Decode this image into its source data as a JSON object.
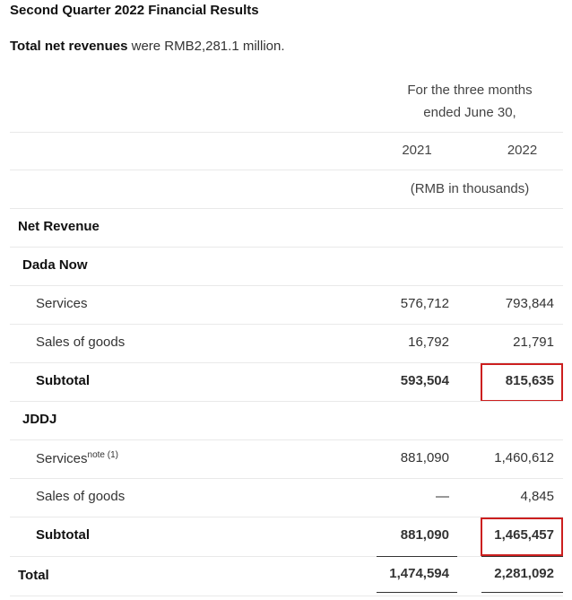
{
  "title": "Second Quarter 2022 Financial Results",
  "intro": {
    "bold": "Total net revenues",
    "rest": " were RMB2,281.1 million."
  },
  "header": {
    "period_line1": "For the three months",
    "period_line2": "ended June 30,",
    "year1": "2021",
    "year2": "2022",
    "unit": "(RMB in thousands)"
  },
  "rows": {
    "net_revenue": "Net Revenue",
    "dada_now": "Dada Now",
    "dn_services": {
      "label": "Services",
      "v2021": "576,712",
      "v2022": "793,844"
    },
    "dn_goods": {
      "label": "Sales of goods",
      "v2021": "16,792",
      "v2022": "21,791"
    },
    "dn_subtotal": {
      "label": "Subtotal",
      "v2021": "593,504",
      "v2022": "815,635"
    },
    "jddj": "JDDJ",
    "jd_services": {
      "label": "Services",
      "note": "note (1)",
      "v2021": "881,090",
      "v2022": "1,460,612"
    },
    "jd_goods": {
      "label": "Sales of goods",
      "v2021": "—",
      "v2022": "4,845"
    },
    "jd_subtotal": {
      "label": "Subtotal",
      "v2021": "881,090",
      "v2022": "1,465,457"
    },
    "total": {
      "label": "Total",
      "v2021": "1,474,594",
      "v2022": "2,281,092"
    }
  },
  "highlight_color": "#cc1f1f"
}
